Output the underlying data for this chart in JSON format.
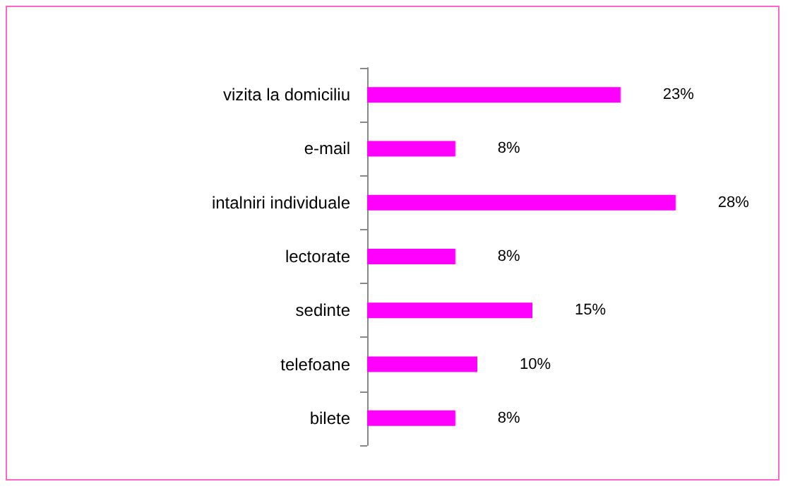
{
  "chart_data": {
    "type": "bar",
    "orientation": "horizontal",
    "categories": [
      "vizita la domiciliu",
      "e-mail",
      "intalniri individuale",
      "lectorate",
      "sedinte",
      "telefoane",
      "bilete"
    ],
    "values": [
      23,
      8,
      28,
      8,
      15,
      10,
      8
    ],
    "value_labels": [
      "23%",
      "8%",
      "28%",
      "8%",
      "15%",
      "10%",
      "8%"
    ],
    "color": "#ff00ff",
    "grid": false,
    "tick_labels": "y"
  }
}
